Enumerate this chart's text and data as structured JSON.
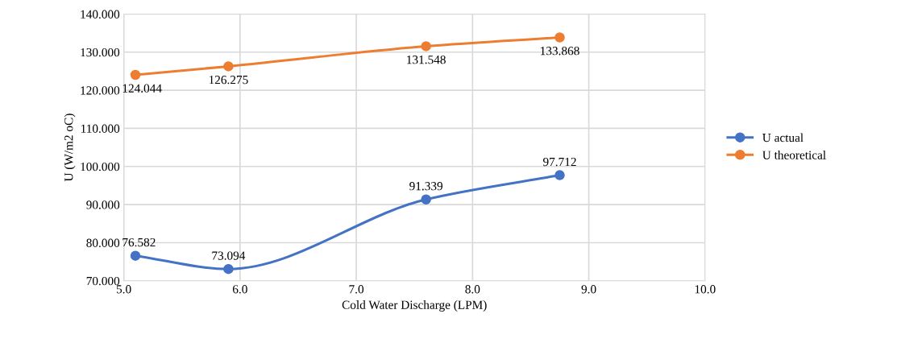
{
  "chart_data": {
    "type": "line",
    "xlabel": "Cold Water Discharge (LPM)",
    "ylabel": "U (W/m2 oC)",
    "x": [
      5.1,
      5.9,
      7.6,
      8.75
    ],
    "series": [
      {
        "name": "U actual",
        "color": "#4472c4",
        "values": [
          76.582,
          73.094,
          91.339,
          97.712
        ]
      },
      {
        "name": "U theoretical",
        "color": "#ed7d31",
        "values": [
          124.044,
          126.275,
          131.548,
          133.868
        ]
      }
    ],
    "xlim": [
      5.0,
      10.0
    ],
    "xticks": [
      {
        "value": 5,
        "label": "5.0"
      },
      {
        "value": 6,
        "label": "6.0"
      },
      {
        "value": 7,
        "label": "7.0"
      },
      {
        "value": 8,
        "label": "8.0"
      },
      {
        "value": 9,
        "label": "9.0"
      },
      {
        "value": 10,
        "label": "10.0"
      }
    ],
    "ylim": [
      70,
      140
    ],
    "yticks": [
      {
        "value": 70,
        "label": "70.000"
      },
      {
        "value": 80,
        "label": "80.000"
      },
      {
        "value": 90,
        "label": "90.000"
      },
      {
        "value": 100,
        "label": "100.000"
      },
      {
        "value": 110,
        "label": "110.000"
      },
      {
        "value": 120,
        "label": "120.000"
      },
      {
        "value": 130,
        "label": "130.000"
      },
      {
        "value": 140,
        "label": "140.000"
      }
    ],
    "grid": true,
    "legend": "right",
    "marker": "circle",
    "line_style": "solid",
    "data_labels": true
  }
}
